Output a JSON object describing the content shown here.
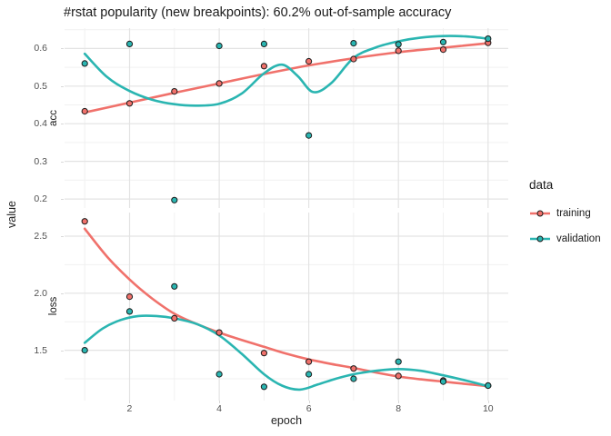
{
  "title": "#rstat popularity (new breakpoints): 60.2% out-of-sample accuracy",
  "axis": {
    "x_title": "epoch",
    "y_title": "value"
  },
  "legend": {
    "title": "data",
    "entries": [
      {
        "label": "training"
      },
      {
        "label": "validation"
      }
    ]
  },
  "colors": {
    "training": "#F0716B",
    "validation": "#2AB5B1",
    "point_stroke": "#1A1A1A",
    "grid_major": "#E3E3E3",
    "grid_minor": "#F1F1F1",
    "tick": "#D9D9D9"
  },
  "chart_data": {
    "type": "line",
    "title": "#rstat popularity (new breakpoints): 60.2% out-of-sample accuracy",
    "xlabel": "epoch",
    "ylabel": "value",
    "facets": "two stacked panels (acc, loss) with free y scales, smoothed loess lines plus scatter points",
    "legend_position": "right",
    "grid": true,
    "x": [
      1,
      2,
      3,
      4,
      5,
      6,
      7,
      8,
      9,
      10
    ],
    "xlim": [
      0.55,
      10.45
    ],
    "x_ticks": [
      2,
      4,
      6,
      8,
      10
    ],
    "panels": [
      {
        "name": "acc",
        "ylim": [
          0.176,
          0.654
        ],
        "y_ticks": [
          0.2,
          0.3,
          0.4,
          0.5,
          0.6
        ],
        "series": [
          {
            "name": "training",
            "color_key": "training",
            "points": [
              0.433,
              0.454,
              0.486,
              0.507,
              0.553,
              0.566,
              0.572,
              0.594,
              0.597,
              0.615
            ],
            "smooth_x": [
              1,
              2,
              3,
              4,
              5,
              6,
              7,
              8,
              9,
              10
            ],
            "smooth_y": [
              0.43,
              0.456,
              0.482,
              0.507,
              0.532,
              0.555,
              0.574,
              0.59,
              0.602,
              0.614
            ]
          },
          {
            "name": "validation",
            "color_key": "validation",
            "points": [
              0.56,
              0.612,
              0.197,
              0.607,
              0.612,
              0.369,
              0.614,
              0.611,
              0.617,
              0.626
            ],
            "smooth_x": [
              1,
              1.5,
              2,
              2.5,
              3,
              3.5,
              4,
              4.5,
              5,
              5.4,
              5.75,
              6.1,
              6.5,
              7,
              7.5,
              8,
              8.5,
              9,
              9.5,
              10
            ],
            "smooth_y": [
              0.586,
              0.524,
              0.487,
              0.464,
              0.452,
              0.448,
              0.453,
              0.48,
              0.534,
              0.557,
              0.527,
              0.484,
              0.508,
              0.575,
              0.603,
              0.619,
              0.629,
              0.633,
              0.632,
              0.626
            ]
          }
        ]
      },
      {
        "name": "loss",
        "ylim": [
          1.059,
          2.707
        ],
        "y_ticks": [
          1.5,
          2.0,
          2.5
        ],
        "series": [
          {
            "name": "training",
            "color_key": "training",
            "points": [
              2.63,
              1.97,
              1.78,
              1.655,
              1.475,
              1.4,
              1.34,
              1.275,
              1.235,
              1.19
            ],
            "smooth_x": [
              1,
              1.5,
              2,
              2.5,
              3,
              3.5,
              4,
              4.5,
              5,
              5.5,
              6,
              6.5,
              7,
              7.5,
              8,
              8.5,
              9,
              9.5,
              10
            ],
            "smooth_y": [
              2.565,
              2.32,
              2.12,
              1.955,
              1.82,
              1.73,
              1.655,
              1.59,
              1.53,
              1.47,
              1.42,
              1.38,
              1.345,
              1.305,
              1.27,
              1.245,
              1.225,
              1.205,
              1.185
            ]
          },
          {
            "name": "validation",
            "color_key": "validation",
            "points": [
              1.5,
              1.84,
              2.06,
              1.29,
              1.18,
              1.29,
              1.25,
              1.4,
              1.225,
              1.19
            ],
            "smooth_x": [
              1,
              1.4,
              1.8,
              2.2,
              2.6,
              3,
              3.5,
              4,
              4.5,
              5,
              5.4,
              5.8,
              6.2,
              6.6,
              7,
              7.5,
              8,
              8.5,
              9,
              9.5,
              10
            ],
            "smooth_y": [
              1.565,
              1.69,
              1.765,
              1.8,
              1.8,
              1.78,
              1.73,
              1.63,
              1.47,
              1.29,
              1.19,
              1.155,
              1.2,
              1.25,
              1.29,
              1.32,
              1.335,
              1.32,
              1.28,
              1.235,
              1.185
            ]
          }
        ]
      }
    ]
  }
}
